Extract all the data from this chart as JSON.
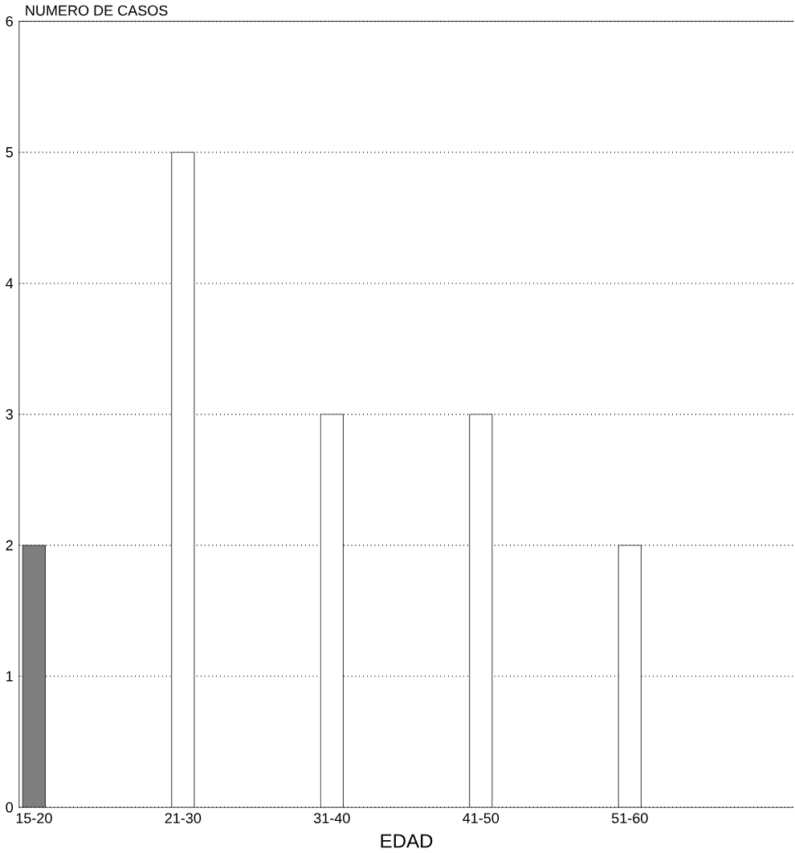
{
  "chart_data": {
    "type": "bar",
    "ylabel": "NUMERO DE CASOS",
    "xlabel": "EDAD",
    "categories": [
      "15-20",
      "21-30",
      "31-40",
      "41-50",
      "51-60"
    ],
    "values": [
      2,
      5,
      3,
      3,
      2
    ],
    "colors": [
      "#7f7f7f",
      "#ffffff",
      "#ffffff",
      "#ffffff",
      "#ffffff"
    ],
    "ylim": [
      0,
      6
    ],
    "yticks": [
      0,
      1,
      2,
      3,
      4,
      5,
      6
    ],
    "grid": "y"
  }
}
